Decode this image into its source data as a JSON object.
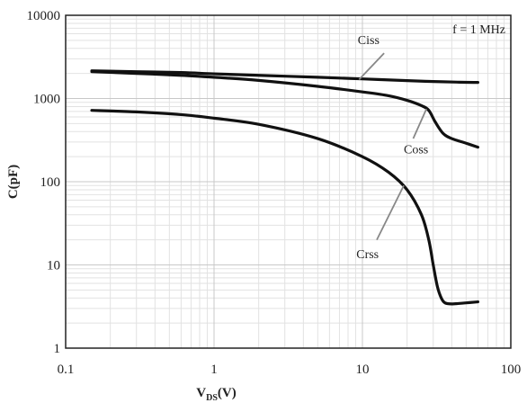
{
  "chart_data": {
    "type": "line",
    "xscale": "log",
    "yscale": "log",
    "xlim": [
      0.1,
      100
    ],
    "ylim": [
      1,
      10000
    ],
    "xticks": [
      "0.1",
      "1",
      "10",
      "100"
    ],
    "yticks": [
      "1",
      "10",
      "100",
      "1000",
      "10000"
    ],
    "xlabel_main": "V",
    "xlabel_sub": "DS",
    "xlabel_tail": "(V)",
    "ylabel": "C(pF)",
    "annotation": "f = 1 MHz",
    "grid": true,
    "series": [
      {
        "name": "Ciss",
        "x": [
          0.15,
          0.3,
          0.6,
          1,
          2,
          5,
          10,
          20,
          30,
          45,
          60
        ],
        "y": [
          2150,
          2100,
          2050,
          1980,
          1900,
          1800,
          1720,
          1640,
          1600,
          1570,
          1560
        ]
      },
      {
        "name": "Coss",
        "x": [
          0.15,
          0.3,
          0.6,
          1,
          2,
          5,
          10,
          15,
          20,
          25,
          28,
          31,
          35,
          40,
          50,
          60
        ],
        "y": [
          2100,
          2000,
          1900,
          1800,
          1650,
          1400,
          1200,
          1080,
          950,
          820,
          720,
          520,
          380,
          330,
          290,
          260
        ]
      },
      {
        "name": "Crss",
        "x": [
          0.15,
          0.3,
          0.6,
          1,
          2,
          5,
          10,
          15,
          20,
          25,
          28,
          30,
          32,
          34,
          36,
          40,
          50,
          60
        ],
        "y": [
          720,
          690,
          640,
          580,
          490,
          330,
          200,
          130,
          80,
          40,
          20,
          10,
          5.5,
          4,
          3.5,
          3.4,
          3.5,
          3.6
        ]
      }
    ],
    "labels": [
      {
        "text": "Ciss",
        "text_x": 9.3,
        "text_y": 4500,
        "line_from": [
          9.5,
          1690
        ],
        "line_to": [
          14,
          3500
        ]
      },
      {
        "text": "Coss",
        "text_x": 19,
        "text_y": 220,
        "line_from": [
          22,
          330
        ],
        "line_to": [
          27,
          750
        ]
      },
      {
        "text": "Crss",
        "text_x": 9.1,
        "text_y": 12,
        "line_from": [
          12.5,
          20
        ],
        "line_to": [
          19,
          90
        ]
      }
    ]
  }
}
